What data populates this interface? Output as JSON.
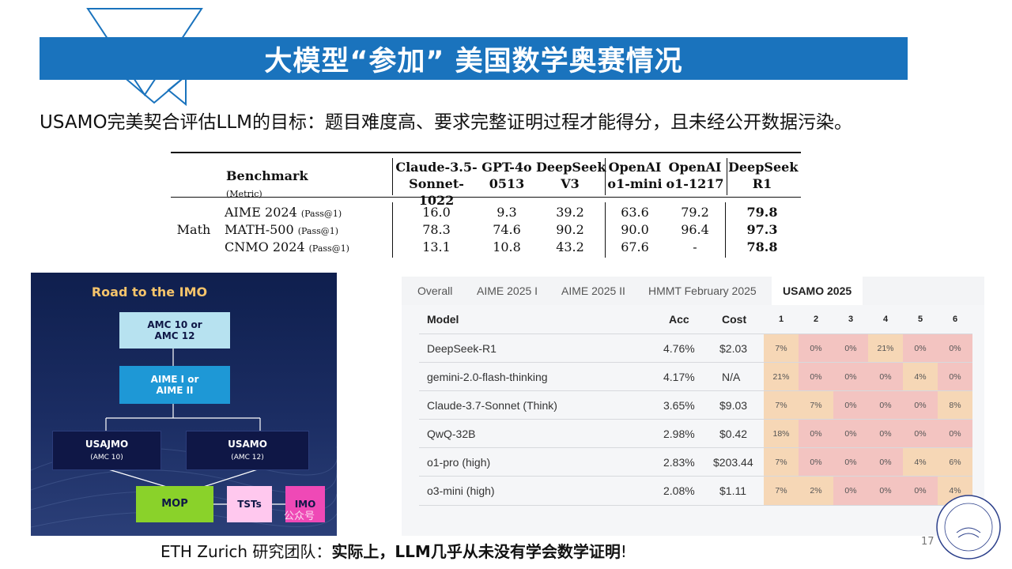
{
  "title": "大模型“参加” 美国数学奥赛情况",
  "subtitle": "USAMO完美契合评估LLM的目标：题目难度高、要求完整证明过程才能得分，且未经公开数据污染。",
  "benchmark_table": {
    "header": {
      "benchmark": "Benchmark",
      "metric": "(Metric)",
      "models": [
        {
          "l1": "Claude-3.5-",
          "l2": "Sonnet-1022"
        },
        {
          "l1": "GPT-4o",
          "l2": "0513"
        },
        {
          "l1": "DeepSeek",
          "l2": "V3"
        },
        {
          "l1": "OpenAI",
          "l2": "o1-mini"
        },
        {
          "l1": "OpenAI",
          "l2": "o1-1217"
        },
        {
          "l1": "DeepSeek",
          "l2": "R1"
        }
      ]
    },
    "category": "Math",
    "rows": [
      {
        "name": "AIME 2024",
        "metric": "(Pass@1)",
        "values": [
          "16.0",
          "9.3",
          "39.2",
          "63.6",
          "79.2",
          "79.8"
        ]
      },
      {
        "name": "MATH-500",
        "metric": "(Pass@1)",
        "values": [
          "78.3",
          "74.6",
          "90.2",
          "90.0",
          "96.4",
          "97.3"
        ]
      },
      {
        "name": "CNMO 2024",
        "metric": "(Pass@1)",
        "values": [
          "13.1",
          "10.8",
          "43.2",
          "67.6",
          "-",
          "78.8"
        ]
      }
    ]
  },
  "imo_diagram": {
    "title": "Road to the IMO",
    "amc": "AMC 10 or\nAMC 12",
    "aime": "AIME I or\nAIME II",
    "usajmo": "USAJMO",
    "usajmo_sub": "(AMC 10)",
    "usamo": "USAMO",
    "usamo_sub": "(AMC 12)",
    "mop": "MOP",
    "tsts": "TSTs",
    "imo": "IMO",
    "watermark": "公众号",
    "colors": {
      "amc": "#b7e2f0",
      "aime": "#1e98d6",
      "usa": "#0f1746",
      "mop": "#8ad22a",
      "tsts": "#ffc8ee",
      "imo": "#ef49b6"
    }
  },
  "results": {
    "tabs": [
      "Overall",
      "AIME 2025 I",
      "AIME 2025 II",
      "HMMT February 2025",
      "USAMO 2025"
    ],
    "active_tab": "USAMO 2025",
    "headers": {
      "model": "Model",
      "acc": "Acc",
      "cost": "Cost",
      "problems": [
        "1",
        "2",
        "3",
        "4",
        "5",
        "6"
      ]
    },
    "rows": [
      {
        "model": "DeepSeek-R1",
        "acc": "4.76%",
        "cost": "$2.03",
        "scores": [
          "7%",
          "0%",
          "0%",
          "21%",
          "0%",
          "0%"
        ]
      },
      {
        "model": "gemini-2.0-flash-thinking",
        "acc": "4.17%",
        "cost": "N/A",
        "scores": [
          "21%",
          "0%",
          "0%",
          "0%",
          "4%",
          "0%"
        ]
      },
      {
        "model": "Claude-3.7-Sonnet (Think)",
        "acc": "3.65%",
        "cost": "$9.03",
        "scores": [
          "7%",
          "7%",
          "0%",
          "0%",
          "0%",
          "8%"
        ]
      },
      {
        "model": "QwQ-32B",
        "acc": "2.98%",
        "cost": "$0.42",
        "scores": [
          "18%",
          "0%",
          "0%",
          "0%",
          "0%",
          "0%"
        ]
      },
      {
        "model": "o1-pro (high)",
        "acc": "2.83%",
        "cost": "$203.44",
        "scores": [
          "7%",
          "0%",
          "0%",
          "0%",
          "4%",
          "6%"
        ]
      },
      {
        "model": "o3-mini (high)",
        "acc": "2.08%",
        "cost": "$1.11",
        "scores": [
          "7%",
          "2%",
          "0%",
          "0%",
          "0%",
          "4%"
        ]
      }
    ],
    "cell_colors": {
      "zero": "#f3c4c1",
      "nonzero": "#f6d7b6"
    }
  },
  "footer": {
    "prefix": "ETH Zurich 研究团队：",
    "emphasis": "实际上，LLM几乎从未没有学会数学证明",
    "suffix": "!"
  },
  "page_number": "17",
  "colors": {
    "banner": "#1a73bd"
  }
}
